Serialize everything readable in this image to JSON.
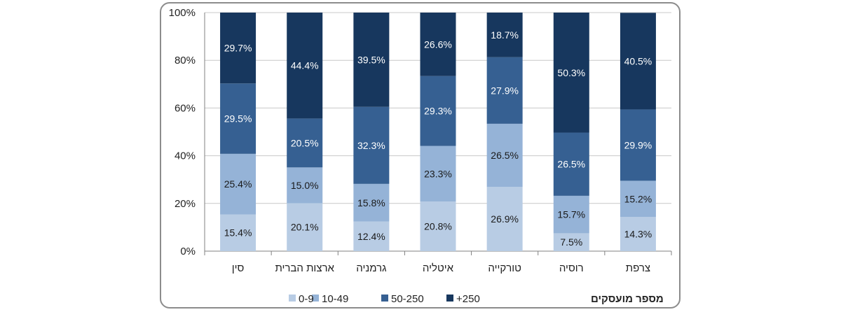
{
  "chart_data": {
    "type": "bar",
    "stacked": true,
    "percent": true,
    "categories": [
      "סין",
      "ארצות הברית",
      "גרמניה",
      "איטליה",
      "טורקייה",
      "רוסיה",
      "צרפת"
    ],
    "series": [
      {
        "name": "0-9",
        "color": "#b8cce4",
        "values": [
          15.4,
          20.1,
          12.4,
          20.8,
          26.9,
          7.5,
          14.3
        ]
      },
      {
        "name": "10-49",
        "color": "#95b3d7",
        "values": [
          25.4,
          15.0,
          15.8,
          23.3,
          26.5,
          15.7,
          15.2
        ]
      },
      {
        "name": "50-250",
        "color": "#366092",
        "values": [
          29.5,
          20.5,
          32.3,
          29.3,
          27.9,
          26.5,
          29.9
        ]
      },
      {
        "name": "+250",
        "color": "#17375e",
        "values": [
          29.7,
          44.4,
          39.5,
          26.6,
          18.7,
          50.3,
          40.5
        ]
      }
    ],
    "value_labels": [
      [
        "15.4%",
        "20.1%",
        "12.4%",
        "20.8%",
        "26.9%",
        "7.5%",
        "14.3%"
      ],
      [
        "25.4%",
        "15.0%",
        "15.8%",
        "23.3%",
        "26.5%",
        "15.7%",
        "15.2%"
      ],
      [
        "29.5%",
        "20.5%",
        "32.3%",
        "29.3%",
        "27.9%",
        "26.5%",
        "29.9%"
      ],
      [
        "29.7%",
        "44.4%",
        "39.5%",
        "26.6%",
        "18.7%",
        "50.3%",
        "40.5%"
      ]
    ],
    "label_colors": [
      "#1a1a1a",
      "#1a1a1a",
      "#ffffff",
      "#ffffff"
    ],
    "yticks": [
      "0%",
      "20%",
      "40%",
      "60%",
      "80%",
      "100%"
    ],
    "ylim": [
      0,
      100
    ],
    "grid": true,
    "legend": {
      "title": "מספר מועסקים",
      "position": "bottom",
      "entries": [
        "+250",
        "50-250",
        "10-49",
        "0-9"
      ]
    }
  }
}
